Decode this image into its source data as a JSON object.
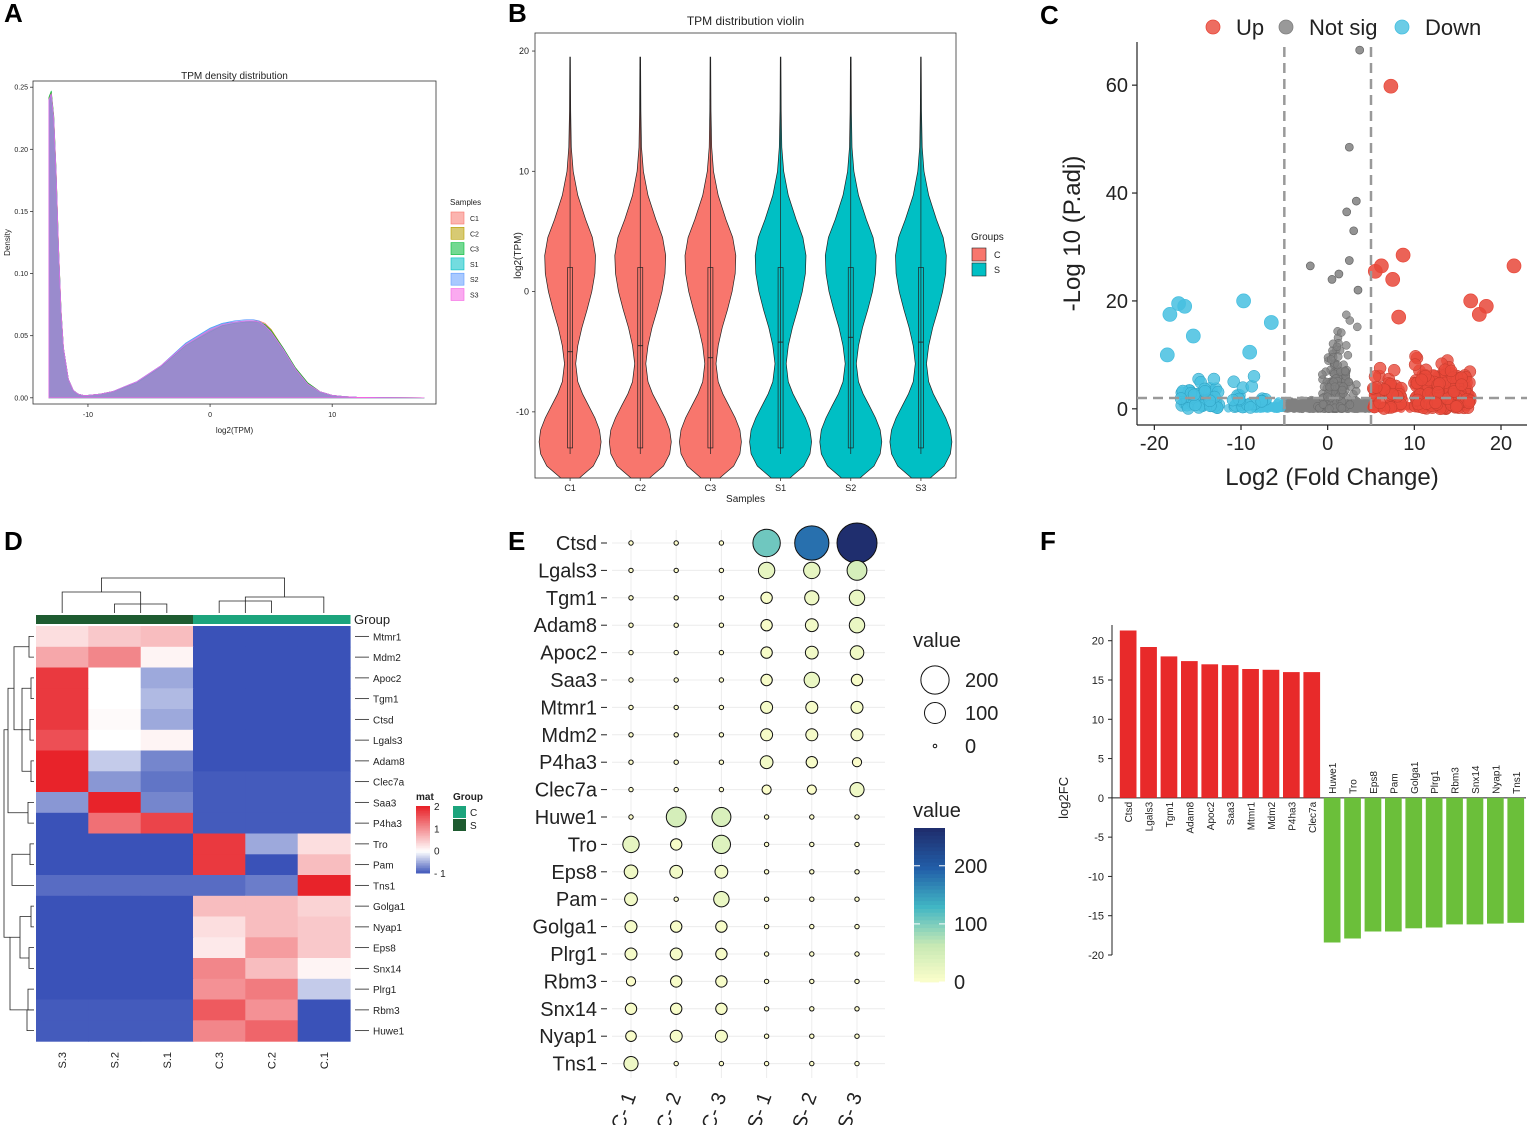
{
  "panel_letters": [
    "A",
    "B",
    "C",
    "D",
    "E",
    "F"
  ],
  "chart_data": [
    {
      "panel": "A",
      "type": "area",
      "title": "TPM density distribution",
      "xlabel": "log2(TPM)",
      "ylabel": "Density",
      "xlim": [
        -14.5,
        18.5
      ],
      "ylim": [
        -0.005,
        0.255
      ],
      "xticks": [
        -10,
        0,
        10
      ],
      "yticks": [
        0.0,
        0.05,
        0.1,
        0.15,
        0.2,
        0.25
      ],
      "legend_title": "Samples",
      "legend": [
        "C1",
        "C2",
        "C3",
        "S1",
        "S2",
        "S3"
      ],
      "colors": [
        "#f8766d",
        "#b79f00",
        "#00ba38",
        "#00bfc4",
        "#619cff",
        "#f564e3"
      ],
      "x": [
        -13.2,
        -13.0,
        -12.8,
        -12.6,
        -12.4,
        -12.2,
        -12.0,
        -11.6,
        -11.2,
        -10.8,
        -10.4,
        -10.0,
        -9.0,
        -8.0,
        -6.0,
        -4.0,
        -2.0,
        0.0,
        1.0,
        2.0,
        3.0,
        3.5,
        4.0,
        4.5,
        5.0,
        6.0,
        7.0,
        8.0,
        9.0,
        10.0,
        11.0,
        12.0,
        14.0,
        17.5
      ],
      "series": [
        {
          "name": "C1",
          "values": [
            0.24,
            0.245,
            0.225,
            0.18,
            0.12,
            0.07,
            0.04,
            0.015,
            0.006,
            0.003,
            0.002,
            0.002,
            0.003,
            0.005,
            0.012,
            0.025,
            0.042,
            0.054,
            0.058,
            0.06,
            0.061,
            0.062,
            0.062,
            0.06,
            0.055,
            0.04,
            0.024,
            0.012,
            0.005,
            0.002,
            0.001,
            0.0005,
            0.0002,
            0.0
          ]
        },
        {
          "name": "C2",
          "values": [
            0.241,
            0.246,
            0.226,
            0.181,
            0.121,
            0.07,
            0.04,
            0.015,
            0.006,
            0.003,
            0.002,
            0.002,
            0.003,
            0.005,
            0.012,
            0.025,
            0.042,
            0.053,
            0.058,
            0.06,
            0.061,
            0.061,
            0.061,
            0.059,
            0.055,
            0.04,
            0.024,
            0.012,
            0.005,
            0.002,
            0.001,
            0.0005,
            0.0002,
            0.0
          ]
        },
        {
          "name": "C3",
          "values": [
            0.242,
            0.247,
            0.227,
            0.182,
            0.121,
            0.071,
            0.04,
            0.015,
            0.006,
            0.003,
            0.002,
            0.002,
            0.003,
            0.005,
            0.012,
            0.025,
            0.042,
            0.053,
            0.058,
            0.06,
            0.061,
            0.061,
            0.061,
            0.059,
            0.054,
            0.04,
            0.024,
            0.012,
            0.005,
            0.002,
            0.001,
            0.0005,
            0.0002,
            0.0
          ]
        },
        {
          "name": "S1",
          "values": [
            0.239,
            0.244,
            0.224,
            0.179,
            0.119,
            0.069,
            0.04,
            0.015,
            0.006,
            0.003,
            0.002,
            0.002,
            0.003,
            0.005,
            0.013,
            0.026,
            0.044,
            0.056,
            0.06,
            0.061,
            0.062,
            0.062,
            0.061,
            0.058,
            0.053,
            0.039,
            0.023,
            0.011,
            0.005,
            0.002,
            0.001,
            0.0005,
            0.0002,
            0.0
          ]
        },
        {
          "name": "S2",
          "values": [
            0.239,
            0.244,
            0.224,
            0.179,
            0.119,
            0.069,
            0.04,
            0.015,
            0.006,
            0.003,
            0.002,
            0.002,
            0.003,
            0.005,
            0.013,
            0.026,
            0.044,
            0.056,
            0.06,
            0.062,
            0.063,
            0.063,
            0.062,
            0.058,
            0.053,
            0.039,
            0.023,
            0.011,
            0.005,
            0.002,
            0.001,
            0.0005,
            0.0002,
            0.0
          ]
        },
        {
          "name": "S3",
          "values": [
            0.24,
            0.245,
            0.225,
            0.18,
            0.12,
            0.07,
            0.04,
            0.015,
            0.006,
            0.003,
            0.002,
            0.002,
            0.003,
            0.005,
            0.013,
            0.026,
            0.043,
            0.055,
            0.059,
            0.061,
            0.062,
            0.062,
            0.061,
            0.058,
            0.053,
            0.039,
            0.023,
            0.011,
            0.005,
            0.002,
            0.001,
            0.0005,
            0.0002,
            0.0
          ]
        }
      ]
    },
    {
      "panel": "B",
      "type": "violin",
      "title": "TPM distribution violin",
      "xlabel": "Samples",
      "ylabel": "log2(TPM)",
      "ylim": [
        -15.5,
        21.5
      ],
      "yticks": [
        -10,
        0,
        10,
        20
      ],
      "categories": [
        "C1",
        "C2",
        "C3",
        "S1",
        "S2",
        "S3"
      ],
      "groups": [
        "C",
        "C",
        "C",
        "S",
        "S",
        "S"
      ],
      "legend_title": "Groups",
      "legend": [
        "C",
        "S"
      ],
      "group_colors": {
        "C": "#f8766d",
        "S": "#00bfc4"
      },
      "density_y": [
        -15.5,
        -14.5,
        -13.5,
        -12.5,
        -11.5,
        -10.5,
        -9.5,
        -8.5,
        -7.5,
        -6,
        -4.5,
        -3,
        -1.5,
        0,
        1.5,
        3,
        4.5,
        6,
        8,
        10,
        12,
        15,
        19.5
      ],
      "density_w": [
        0.3,
        0.75,
        0.95,
        1.0,
        0.95,
        0.8,
        0.6,
        0.4,
        0.25,
        0.18,
        0.25,
        0.38,
        0.55,
        0.7,
        0.8,
        0.82,
        0.72,
        0.5,
        0.25,
        0.1,
        0.04,
        0.02,
        0.01
      ],
      "box": [
        {
          "median": -5,
          "q1": -13,
          "q3": 2,
          "lo": -13.5,
          "hi": 19.5
        },
        {
          "median": -4.5,
          "q1": -13,
          "q3": 2,
          "lo": -13.5,
          "hi": 19.5
        },
        {
          "median": -5.5,
          "q1": -13,
          "q3": 2,
          "lo": -13.5,
          "hi": 19.5
        },
        {
          "median": -4.2,
          "q1": -13,
          "q3": 2,
          "lo": -13.5,
          "hi": 19.5
        },
        {
          "median": -3.8,
          "q1": -13,
          "q3": 2,
          "lo": -13.5,
          "hi": 19.5
        },
        {
          "median": -4.2,
          "q1": -13,
          "q3": 2,
          "lo": -13.5,
          "hi": 19.5
        }
      ]
    },
    {
      "panel": "C",
      "type": "scatter",
      "title": "",
      "xlabel": "Log2 (Fold Change)",
      "ylabel": "-Log 10 (P.adj)",
      "xlim": [
        -22,
        23
      ],
      "ylim": [
        -3,
        68
      ],
      "xticks": [
        -20,
        -10,
        0,
        10,
        20
      ],
      "yticks": [
        0,
        20,
        40,
        60
      ],
      "thresholds": {
        "log2fc": [
          -5,
          5
        ],
        "padj_line": 2
      },
      "legend": [
        "Up",
        "Not sig",
        "Down"
      ],
      "colors": {
        "Up": "#e8483a",
        "Not sig": "#808080",
        "Down": "#46bfe0"
      },
      "highlighted_points": [
        {
          "group": "Up",
          "x": 7.3,
          "y": 59.8
        },
        {
          "group": "Up",
          "x": 21.5,
          "y": 26.5
        },
        {
          "group": "Up",
          "x": 8.7,
          "y": 28.5
        },
        {
          "group": "Up",
          "x": 6.2,
          "y": 26.5
        },
        {
          "group": "Up",
          "x": 18.3,
          "y": 19
        },
        {
          "group": "Up",
          "x": 16.5,
          "y": 20
        },
        {
          "group": "Up",
          "x": 17.5,
          "y": 17.5
        },
        {
          "group": "Up",
          "x": 8.2,
          "y": 17
        },
        {
          "group": "Up",
          "x": 5.5,
          "y": 25.5
        },
        {
          "group": "Up",
          "x": 7.5,
          "y": 24
        },
        {
          "group": "Down",
          "x": -17.2,
          "y": 19.5
        },
        {
          "group": "Down",
          "x": -18.2,
          "y": 17.5
        },
        {
          "group": "Down",
          "x": -16.5,
          "y": 19
        },
        {
          "group": "Down",
          "x": -9.7,
          "y": 20
        },
        {
          "group": "Down",
          "x": -6.5,
          "y": 16
        },
        {
          "group": "Down",
          "x": -18.5,
          "y": 10
        },
        {
          "group": "Down",
          "x": -15.5,
          "y": 13.5
        },
        {
          "group": "Down",
          "x": -9.0,
          "y": 10.5
        },
        {
          "group": "Not sig",
          "x": 3.7,
          "y": 66.5
        },
        {
          "group": "Not sig",
          "x": 2.5,
          "y": 48.5
        },
        {
          "group": "Not sig",
          "x": 3.3,
          "y": 38.5
        },
        {
          "group": "Not sig",
          "x": 2.2,
          "y": 36.5
        },
        {
          "group": "Not sig",
          "x": 3.0,
          "y": 33
        },
        {
          "group": "Not sig",
          "x": -2.0,
          "y": 26.5
        },
        {
          "group": "Not sig",
          "x": 1.3,
          "y": 25
        },
        {
          "group": "Not sig",
          "x": 2.5,
          "y": 27.5
        },
        {
          "group": "Not sig",
          "x": 0.5,
          "y": 24
        },
        {
          "group": "Not sig",
          "x": 3.5,
          "y": 22
        }
      ]
    },
    {
      "panel": "D",
      "type": "heatmap",
      "columns": [
        "S.3",
        "S.2",
        "S.1",
        "C.3",
        "C.2",
        "C.1"
      ],
      "column_groups": [
        "S",
        "S",
        "S",
        "C",
        "C",
        "C"
      ],
      "rows": [
        "Mtmr1",
        "Mdm2",
        "Apoc2",
        "Tgm1",
        "Ctsd",
        "Lgals3",
        "Adam8",
        "Clec7a",
        "Saa3",
        "P4ha3",
        "Tro",
        "Pam",
        "Tns1",
        "Golga1",
        "Nyap1",
        "Eps8",
        "Snx14",
        "Plrg1",
        "Rbm3",
        "Huwe1"
      ],
      "values": [
        [
          0.3,
          0.5,
          0.6,
          -1,
          -1,
          -1
        ],
        [
          0.8,
          1.1,
          0.1,
          -1,
          -1,
          -1
        ],
        [
          1.8,
          0.0,
          -0.5,
          -1,
          -1,
          -1
        ],
        [
          1.8,
          0.0,
          -0.4,
          -1,
          -1,
          -1
        ],
        [
          1.8,
          0.05,
          -0.5,
          -1,
          -1,
          -1
        ],
        [
          1.6,
          0.0,
          0.1,
          -1,
          -1,
          -1
        ],
        [
          2.0,
          -0.3,
          -0.7,
          -1,
          -1,
          -1
        ],
        [
          2.0,
          -0.6,
          -0.8,
          -0.95,
          -0.95,
          -0.95
        ],
        [
          -0.6,
          2.0,
          -0.7,
          -0.95,
          -0.95,
          -0.95
        ],
        [
          -1,
          1.3,
          1.7,
          -0.95,
          -0.95,
          -0.95
        ],
        [
          -1,
          -1,
          -1,
          1.8,
          -0.5,
          0.3
        ],
        [
          -1,
          -1,
          -1,
          1.8,
          -1,
          0.6
        ],
        [
          -0.85,
          -0.85,
          -0.85,
          -0.85,
          -0.75,
          2.0
        ],
        [
          -1,
          -1,
          -1,
          0.6,
          0.6,
          0.4
        ],
        [
          -1,
          -1,
          -1,
          0.3,
          0.6,
          0.5
        ],
        [
          -1,
          -1,
          -1,
          0.2,
          0.9,
          0.5
        ],
        [
          -1,
          -1,
          -1,
          1.1,
          0.6,
          0.1
        ],
        [
          -1,
          -1,
          -1,
          1.0,
          1.2,
          -0.3
        ],
        [
          -0.95,
          -0.95,
          -0.95,
          1.5,
          1.0,
          -1
        ],
        [
          -0.95,
          -0.95,
          -0.95,
          1.1,
          1.4,
          -1
        ]
      ],
      "color_scale": {
        "min": -1,
        "mid": 0,
        "max": 2,
        "colors": [
          "#3a52b8",
          "#ffffff",
          "#e8232a"
        ]
      },
      "legend_title": "mat",
      "legend_ticks": [
        2,
        1,
        0,
        -1
      ],
      "legend_tick_labels": [
        "2",
        "1",
        "0",
        "- 1"
      ],
      "group_title": "Group",
      "groups": [
        "C",
        "S"
      ],
      "group_colors": {
        "C": "#1ca47c",
        "S": "#1e5b30"
      }
    },
    {
      "panel": "E",
      "type": "bubble",
      "genes": [
        "Ctsd",
        "Lgals3",
        "Tgm1",
        "Adam8",
        "Apoc2",
        "Saa3",
        "Mtmr1",
        "Mdm2",
        "P4ha3",
        "Clec7a",
        "Huwe1",
        "Tro",
        "Eps8",
        "Pam",
        "Golga1",
        "Plrg1",
        "Rbm3",
        "Snx14",
        "Nyap1",
        "Tns1"
      ],
      "samples": [
        "C- 1",
        "C- 2",
        "C- 3",
        "S- 1",
        "S- 2",
        "S- 3"
      ],
      "values": [
        [
          0,
          0,
          0,
          110,
          185,
          265
        ],
        [
          0,
          0,
          0,
          30,
          30,
          50
        ],
        [
          0,
          0,
          0,
          10,
          20,
          25
        ],
        [
          0,
          0,
          0,
          10,
          15,
          25
        ],
        [
          0,
          0,
          0,
          10,
          15,
          18
        ],
        [
          0,
          0,
          0,
          10,
          25,
          10
        ],
        [
          0,
          0,
          0,
          12,
          12,
          12
        ],
        [
          0,
          0,
          0,
          12,
          12,
          12
        ],
        [
          0,
          0,
          0,
          15,
          10,
          5
        ],
        [
          0,
          0,
          0,
          5,
          5,
          20
        ],
        [
          0,
          50,
          45,
          0,
          0,
          0
        ],
        [
          30,
          10,
          40,
          0,
          0,
          0
        ],
        [
          18,
          15,
          15,
          0,
          0,
          0
        ],
        [
          15,
          0,
          25,
          0,
          0,
          0
        ],
        [
          12,
          10,
          10,
          0,
          0,
          0
        ],
        [
          12,
          12,
          10,
          0,
          0,
          0
        ],
        [
          5,
          10,
          10,
          0,
          0,
          0
        ],
        [
          10,
          10,
          10,
          0,
          0,
          0
        ],
        [
          8,
          12,
          12,
          0,
          0,
          0
        ],
        [
          20,
          0,
          0,
          0,
          0,
          0
        ]
      ],
      "size_legend_title": "value",
      "size_legend": [
        200,
        100,
        0
      ],
      "color_legend_title": "value",
      "color_legend_ticks": [
        200,
        100,
        0
      ],
      "color_scale": [
        "#ffffcc",
        "#c7e9b4",
        "#41b6c4",
        "#225ea8",
        "#1f2e6e"
      ],
      "vmax": 265
    },
    {
      "panel": "F",
      "type": "bar",
      "ylabel": "log2FC",
      "ylim": [
        -20,
        22
      ],
      "yticks": [
        20,
        15,
        10,
        5,
        0,
        -5,
        -10,
        -15,
        -20
      ],
      "categories": [
        "Ctsd",
        "Lgals3",
        "Tgm1",
        "Adam8",
        "Apoc2",
        "Saa3",
        "Mtmr1",
        "Mdm2",
        "P4ha3",
        "Clec7a",
        "Huwe1",
        "Tro",
        "Eps8",
        "Pam",
        "Golga1",
        "Plrg1",
        "Rbm3",
        "Snx14",
        "Nyap1",
        "Tns1"
      ],
      "values": [
        21.3,
        19.2,
        18.0,
        17.4,
        17.0,
        16.9,
        16.4,
        16.3,
        16.0,
        16.0,
        -18.4,
        -17.9,
        -17.0,
        -17.0,
        -16.6,
        -16.5,
        -16.1,
        -16.1,
        -16.0,
        -15.9
      ],
      "colors": {
        "positive": "#e82a2a",
        "negative": "#6bbf3a"
      }
    }
  ]
}
